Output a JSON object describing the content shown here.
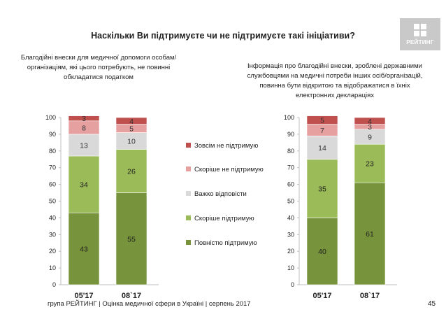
{
  "title": "Наскільки Ви підтримуєте чи не підтримуєте такі ініціативи?",
  "logo": {
    "text": "РЕЙТИНГ"
  },
  "footer": "група РЕЙТИНГ  |  Оцінка медичної сфери в Україні  |  серпень 2017",
  "page_number": "45",
  "chart_data": [
    {
      "type": "bar",
      "stacked": true,
      "title": "Благодійні внески для медичної допомоги особам/організаціям, які цього потребують, не повинні обкладатися податком",
      "categories": [
        "05'17",
        "08`17"
      ],
      "ylim": [
        0,
        100
      ],
      "yticks": [
        "0",
        "10",
        "20",
        "30",
        "40",
        "50",
        "60",
        "70",
        "80",
        "90",
        "100"
      ],
      "series": [
        {
          "name": "Повністю підтримую",
          "color": "#77933c",
          "values": [
            43,
            55
          ]
        },
        {
          "name": "Скоріше підтримую",
          "color": "#9bbb59",
          "values": [
            34,
            26
          ]
        },
        {
          "name": "Важко відповісти",
          "color": "#d9d9d9",
          "values": [
            13,
            10
          ]
        },
        {
          "name": "Скоріше не підтримую",
          "color": "#e6a0a0",
          "values": [
            8,
            5
          ]
        },
        {
          "name": "Зовсім не підтримую",
          "color": "#c0504d",
          "values": [
            3,
            4
          ]
        }
      ]
    },
    {
      "type": "bar",
      "stacked": true,
      "title": "Інформація про благодійні внески, зроблені державними службовцями на медичні потреби інших осіб/організацій, повинна бути відкритою та відображатися в їхніх електронних деклараціях",
      "categories": [
        "05'17",
        "08`17"
      ],
      "ylim": [
        0,
        100
      ],
      "yticks": [
        "0",
        "10",
        "20",
        "30",
        "40",
        "50",
        "60",
        "70",
        "80",
        "90",
        "100"
      ],
      "series": [
        {
          "name": "Повністю підтримую",
          "color": "#77933c",
          "values": [
            40,
            61
          ]
        },
        {
          "name": "Скоріше підтримую",
          "color": "#9bbb59",
          "values": [
            35,
            23
          ]
        },
        {
          "name": "Важко відповісти",
          "color": "#d9d9d9",
          "values": [
            14,
            9
          ]
        },
        {
          "name": "Скоріше не підтримую",
          "color": "#e6a0a0",
          "values": [
            7,
            3
          ]
        },
        {
          "name": "Зовсім не підтримую",
          "color": "#c0504d",
          "values": [
            5,
            4
          ]
        }
      ]
    }
  ],
  "legend": {
    "items": [
      {
        "label": "Зовсім не підтримую",
        "color": "#c0504d"
      },
      {
        "label": "Скоріше не підтримую",
        "color": "#e6a0a0"
      },
      {
        "label": "Важко відповісти",
        "color": "#d9d9d9"
      },
      {
        "label": "Скоріше підтримую",
        "color": "#9bbb59"
      },
      {
        "label": "Повністю підтримую",
        "color": "#77933c"
      }
    ]
  }
}
